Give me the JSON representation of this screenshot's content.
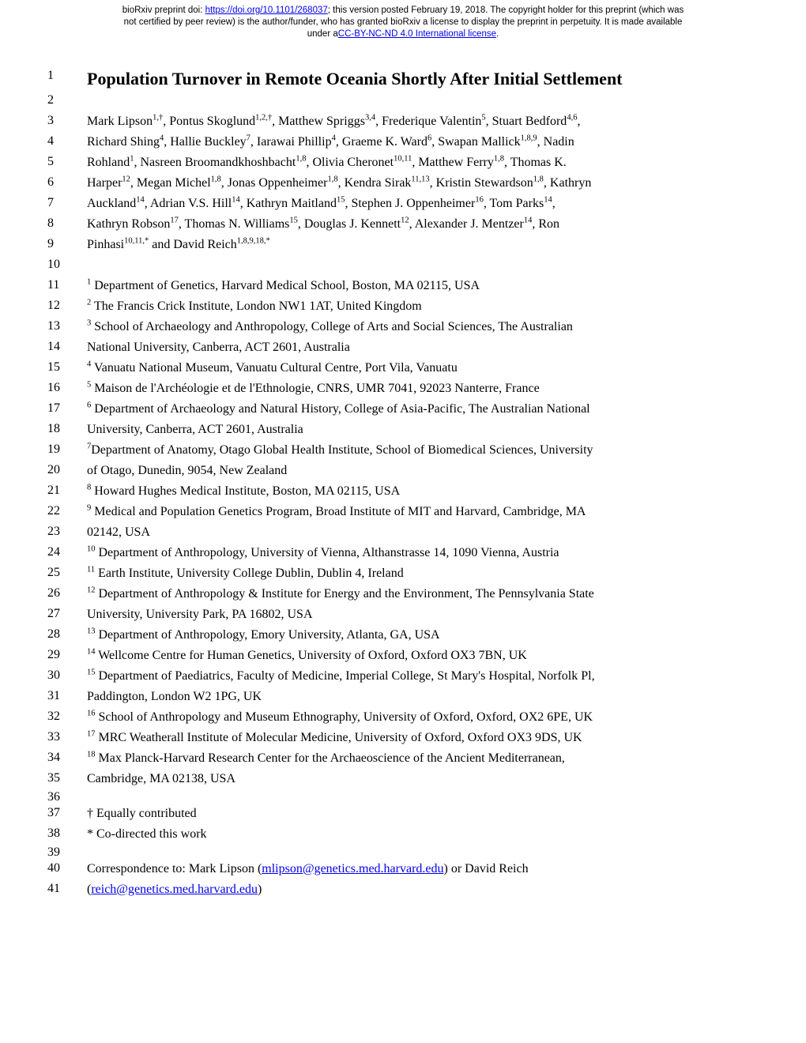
{
  "preprint_header": {
    "line1_pre": "bioRxiv preprint doi: ",
    "doi_url": "https://doi.org/10.1101/268037",
    "line1_post": "; this version posted February 19, 2018. The copyright holder for this preprint (which was",
    "line2": "not certified by peer review) is the author/funder, who has granted bioRxiv a license to display the preprint in perpetuity. It is made available",
    "line3_pre": "under a",
    "license_text": "CC-BY-NC-ND 4.0 International license",
    "line3_post": "."
  },
  "lines": {
    "l1": "Population Turnover in Remote Oceania Shortly After Initial Settlement",
    "l3_a": "Mark Lipson",
    "l3_a_sup": "1,†",
    "l3_b": ", Pontus Skoglund",
    "l3_b_sup": "1,2,†",
    "l3_c": ", Matthew Spriggs",
    "l3_c_sup": "3,4",
    "l3_d": ", Frederique Valentin",
    "l3_d_sup": "5",
    "l3_e": ", Stuart Bedford",
    "l3_e_sup": "4,6",
    "l3_f": ",",
    "l4_a": "Richard Shing",
    "l4_a_sup": "4",
    "l4_b": ", Hallie Buckley",
    "l4_b_sup": "7",
    "l4_c": ", Iarawai Phillip",
    "l4_c_sup": "4",
    "l4_d": ", Graeme K. Ward",
    "l4_d_sup": "6",
    "l4_e": ", Swapan Mallick",
    "l4_e_sup": "1,8,9",
    "l4_f": ", Nadin",
    "l5_a": "Rohland",
    "l5_a_sup": "1",
    "l5_b": ", Nasreen Broomandkhoshbacht",
    "l5_b_sup": "1,8",
    "l5_c": ", Olivia Cheronet",
    "l5_c_sup": "10,11",
    "l5_d": ", Matthew Ferry",
    "l5_d_sup": "1,8",
    "l5_e": ", Thomas K.",
    "l6_a": "Harper",
    "l6_a_sup": "12",
    "l6_b": ", Megan Michel",
    "l6_b_sup": "1,8",
    "l6_c": ", Jonas Oppenheimer",
    "l6_c_sup": "1,8",
    "l6_d": ", Kendra Sirak",
    "l6_d_sup": "11,13",
    "l6_e": ", Kristin Stewardson",
    "l6_e_sup": "1,8",
    "l6_f": ", Kathryn",
    "l7_a": "Auckland",
    "l7_a_sup": "14",
    "l7_b": ", Adrian V.S. Hill",
    "l7_b_sup": "14",
    "l7_c": ", Kathryn Maitland",
    "l7_c_sup": "15",
    "l7_d": ", Stephen J. Oppenheimer",
    "l7_d_sup": "16",
    "l7_e": ", Tom Parks",
    "l7_e_sup": "14",
    "l7_f": ",",
    "l8_a": "Kathryn Robson",
    "l8_a_sup": "17",
    "l8_b": ", Thomas N. Williams",
    "l8_b_sup": "15",
    "l8_c": ", Douglas J. Kennett",
    "l8_c_sup": "12",
    "l8_d": ", Alexander J. Mentzer",
    "l8_d_sup": "14",
    "l8_e": ", Ron",
    "l9_a": "Pinhasi",
    "l9_a_sup": "10,11,*",
    "l9_b": " and David Reich",
    "l9_b_sup": "1,8,9,18,*",
    "l11_sup": "1",
    "l11": " Department of Genetics, Harvard Medical School, Boston, MA 02115, USA",
    "l12_sup": "2",
    "l12": " The Francis Crick Institute, London NW1 1AT, United Kingdom",
    "l13_sup": "3",
    "l13": " School of Archaeology and Anthropology, College of Arts and Social Sciences, The Australian",
    "l14": "National University, Canberra, ACT 2601, Australia",
    "l15_sup": "4",
    "l15": " Vanuatu National Museum, Vanuatu Cultural Centre, Port Vila, Vanuatu",
    "l16_sup": "5",
    "l16": " Maison de l'Archéologie et de l'Ethnologie, CNRS, UMR 7041, 92023 Nanterre, France",
    "l17_sup": "6",
    "l17": " Department of Archaeology and Natural History, College of Asia-Pacific, The Australian National",
    "l18": "University, Canberra, ACT 2601, Australia",
    "l19_sup": "7",
    "l19": "Department of Anatomy, Otago Global Health Institute, School of Biomedical Sciences, University",
    "l20": "of Otago, Dunedin, 9054, New Zealand",
    "l21_sup": "8",
    "l21": " Howard Hughes Medical Institute, Boston, MA 02115, USA",
    "l22_sup": "9",
    "l22": " Medical and Population Genetics Program, Broad Institute of MIT and Harvard, Cambridge, MA",
    "l23": "02142, USA",
    "l24_sup": "10",
    "l24": " Department of Anthropology, University of Vienna, Althanstrasse 14, 1090 Vienna, Austria",
    "l25_sup": "11",
    "l25": " Earth Institute, University College Dublin, Dublin 4, Ireland",
    "l26_sup": "12",
    "l26": " Department of Anthropology & Institute for Energy and the Environment, The Pennsylvania State",
    "l27": "University, University Park, PA 16802, USA",
    "l28_sup": "13",
    "l28": " Department of Anthropology, Emory University, Atlanta, GA, USA",
    "l29_sup": "14",
    "l29": " Wellcome Centre for Human Genetics, University of Oxford, Oxford OX3 7BN, UK",
    "l30_sup": "15",
    "l30": " Department of Paediatrics, Faculty of Medicine, Imperial College, St Mary's Hospital, Norfolk Pl,",
    "l31": "Paddington, London W2 1PG, UK",
    "l32_sup": "16",
    "l32": " School of Anthropology and Museum Ethnography, University of Oxford, Oxford, OX2 6PE, UK",
    "l33_sup": "17",
    "l33": " MRC Weatherall Institute of Molecular Medicine, University of Oxford, Oxford OX3 9DS, UK",
    "l34_sup": "18",
    "l34": " Max Planck-Harvard Research Center for the Archaeoscience of the Ancient Mediterranean,",
    "l35": "Cambridge, MA 02138, USA",
    "l37": "† Equally contributed",
    "l38": "* Co-directed this work",
    "l40_a": "Correspondence to: Mark Lipson (",
    "l40_email": "mlipson@genetics.med.harvard.edu",
    "l40_b": ") or David Reich",
    "l41_a": "(",
    "l41_email": "reich@genetics.med.harvard.edu",
    "l41_b": ")"
  },
  "nums": {
    "n1": "1",
    "n2": "2",
    "n3": "3",
    "n4": "4",
    "n5": "5",
    "n6": "6",
    "n7": "7",
    "n8": "8",
    "n9": "9",
    "n10": "10",
    "n11": "11",
    "n12": "12",
    "n13": "13",
    "n14": "14",
    "n15": "15",
    "n16": "16",
    "n17": "17",
    "n18": "18",
    "n19": "19",
    "n20": "20",
    "n21": "21",
    "n22": "22",
    "n23": "23",
    "n24": "24",
    "n25": "25",
    "n26": "26",
    "n27": "27",
    "n28": "28",
    "n29": "29",
    "n30": "30",
    "n31": "31",
    "n32": "32",
    "n33": "33",
    "n34": "34",
    "n35": "35",
    "n36": "36",
    "n37": "37",
    "n38": "38",
    "n39": "39",
    "n40": "40",
    "n41": "41"
  }
}
